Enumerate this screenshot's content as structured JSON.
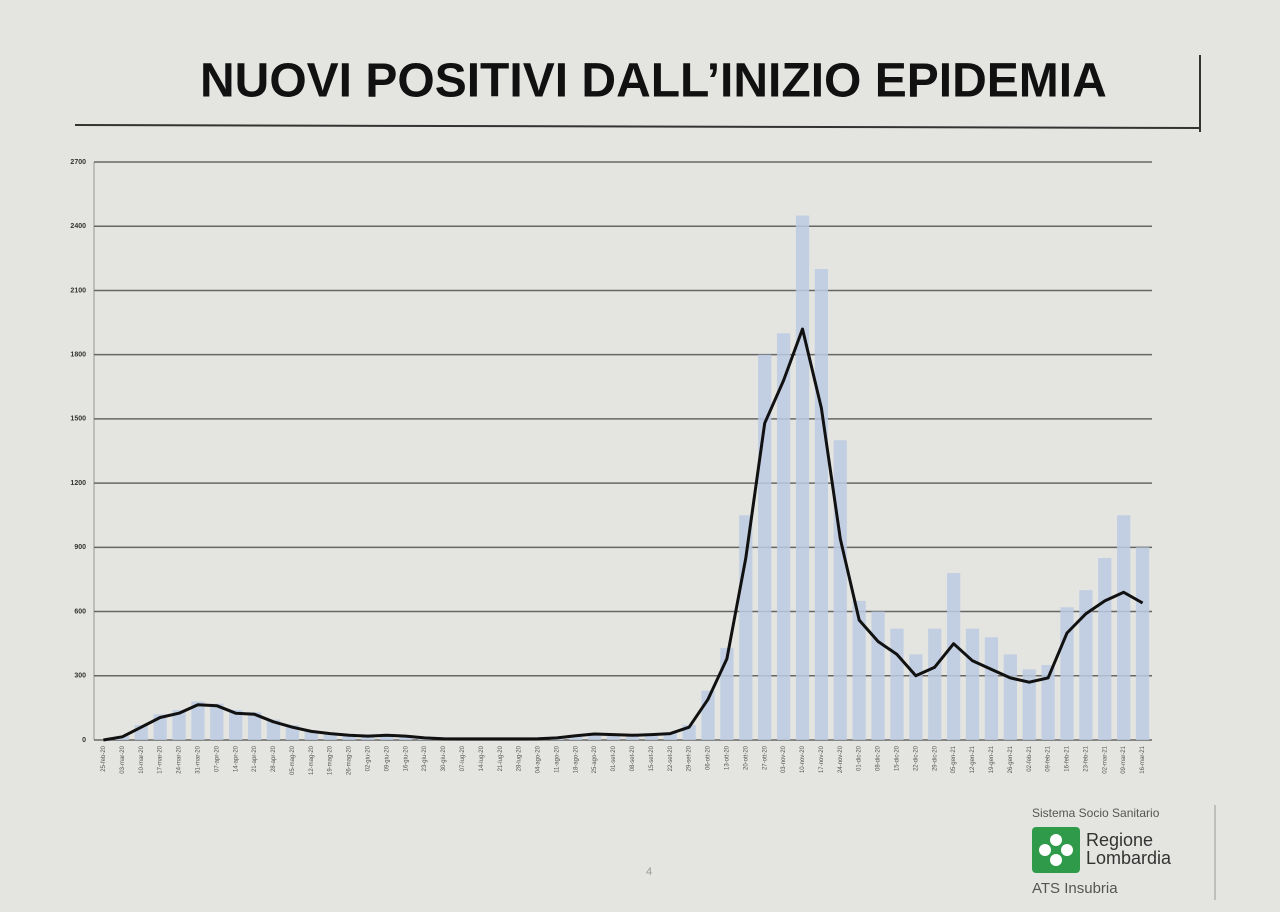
{
  "chart_data": {
    "type": "bar-line",
    "title": "NUOVI POSITIVI DALL’INIZIO EPIDEMIA",
    "categories": [
      "25-feb-20",
      "03-mar-20",
      "10-mar-20",
      "17-mar-20",
      "24-mar-20",
      "31-mar-20",
      "07-apr-20",
      "14-apr-20",
      "21-apr-20",
      "28-apr-20",
      "05-mag-20",
      "12-mag-20",
      "19-mag-20",
      "26-mag-20",
      "02-giu-20",
      "09-giu-20",
      "16-giu-20",
      "23-giu-20",
      "30-giu-20",
      "07-lug-20",
      "14-lug-20",
      "21-lug-20",
      "28-lug-20",
      "04-ago-20",
      "11-ago-20",
      "18-ago-20",
      "25-ago-20",
      "01-set-20",
      "08-set-20",
      "15-set-20",
      "22-set-20",
      "29-set-20",
      "06-ott-20",
      "13-ott-20",
      "20-ott-20",
      "27-ott-20",
      "03-nov-20",
      "10-nov-20",
      "17-nov-20",
      "24-nov-20",
      "01-dic-20",
      "08-dic-20",
      "15-dic-20",
      "22-dic-20",
      "29-dic-20",
      "05-gen-21",
      "12-gen-21",
      "19-gen-21",
      "26-gen-21",
      "02-feb-21",
      "09-feb-21",
      "16-feb-21",
      "23-feb-21",
      "02-mar-21",
      "09-mar-21",
      "16-mar-21"
    ],
    "series": [
      {
        "color": "#bccbe2",
        "values": [
          0,
          20,
          70,
          120,
          140,
          180,
          170,
          140,
          130,
          95,
          70,
          45,
          35,
          25,
          20,
          25,
          20,
          12,
          8,
          6,
          6,
          6,
          6,
          8,
          12,
          25,
          35,
          30,
          25,
          30,
          35,
          70,
          230,
          430,
          1050,
          1800,
          1900,
          2450,
          2200,
          1400,
          650,
          600,
          520,
          400,
          520,
          780,
          520,
          480,
          400,
          330,
          350,
          620,
          700,
          850,
          1050,
          900
        ]
      },
      {
        "color": "#111111",
        "values": [
          0,
          15,
          60,
          105,
          125,
          165,
          160,
          125,
          120,
          85,
          60,
          40,
          30,
          22,
          18,
          22,
          18,
          10,
          6,
          5,
          5,
          5,
          5,
          6,
          10,
          20,
          28,
          25,
          22,
          25,
          30,
          60,
          190,
          380,
          850,
          1480,
          1680,
          1920,
          1550,
          940,
          560,
          460,
          400,
          300,
          340,
          450,
          370,
          330,
          290,
          270,
          290,
          500,
          590,
          650,
          690,
          640
        ]
      }
    ],
    "ylim": [
      0,
      2700
    ],
    "yticks": [
      0,
      300,
      600,
      900,
      1200,
      1500,
      1800,
      2100,
      2400,
      2700
    ],
    "grid": true
  },
  "footer": {
    "org": "Sistema Socio Sanitario",
    "brand_line1": "Regione",
    "brand_line2": "Lombardia",
    "unit": "ATS Insubria",
    "page": "4"
  }
}
